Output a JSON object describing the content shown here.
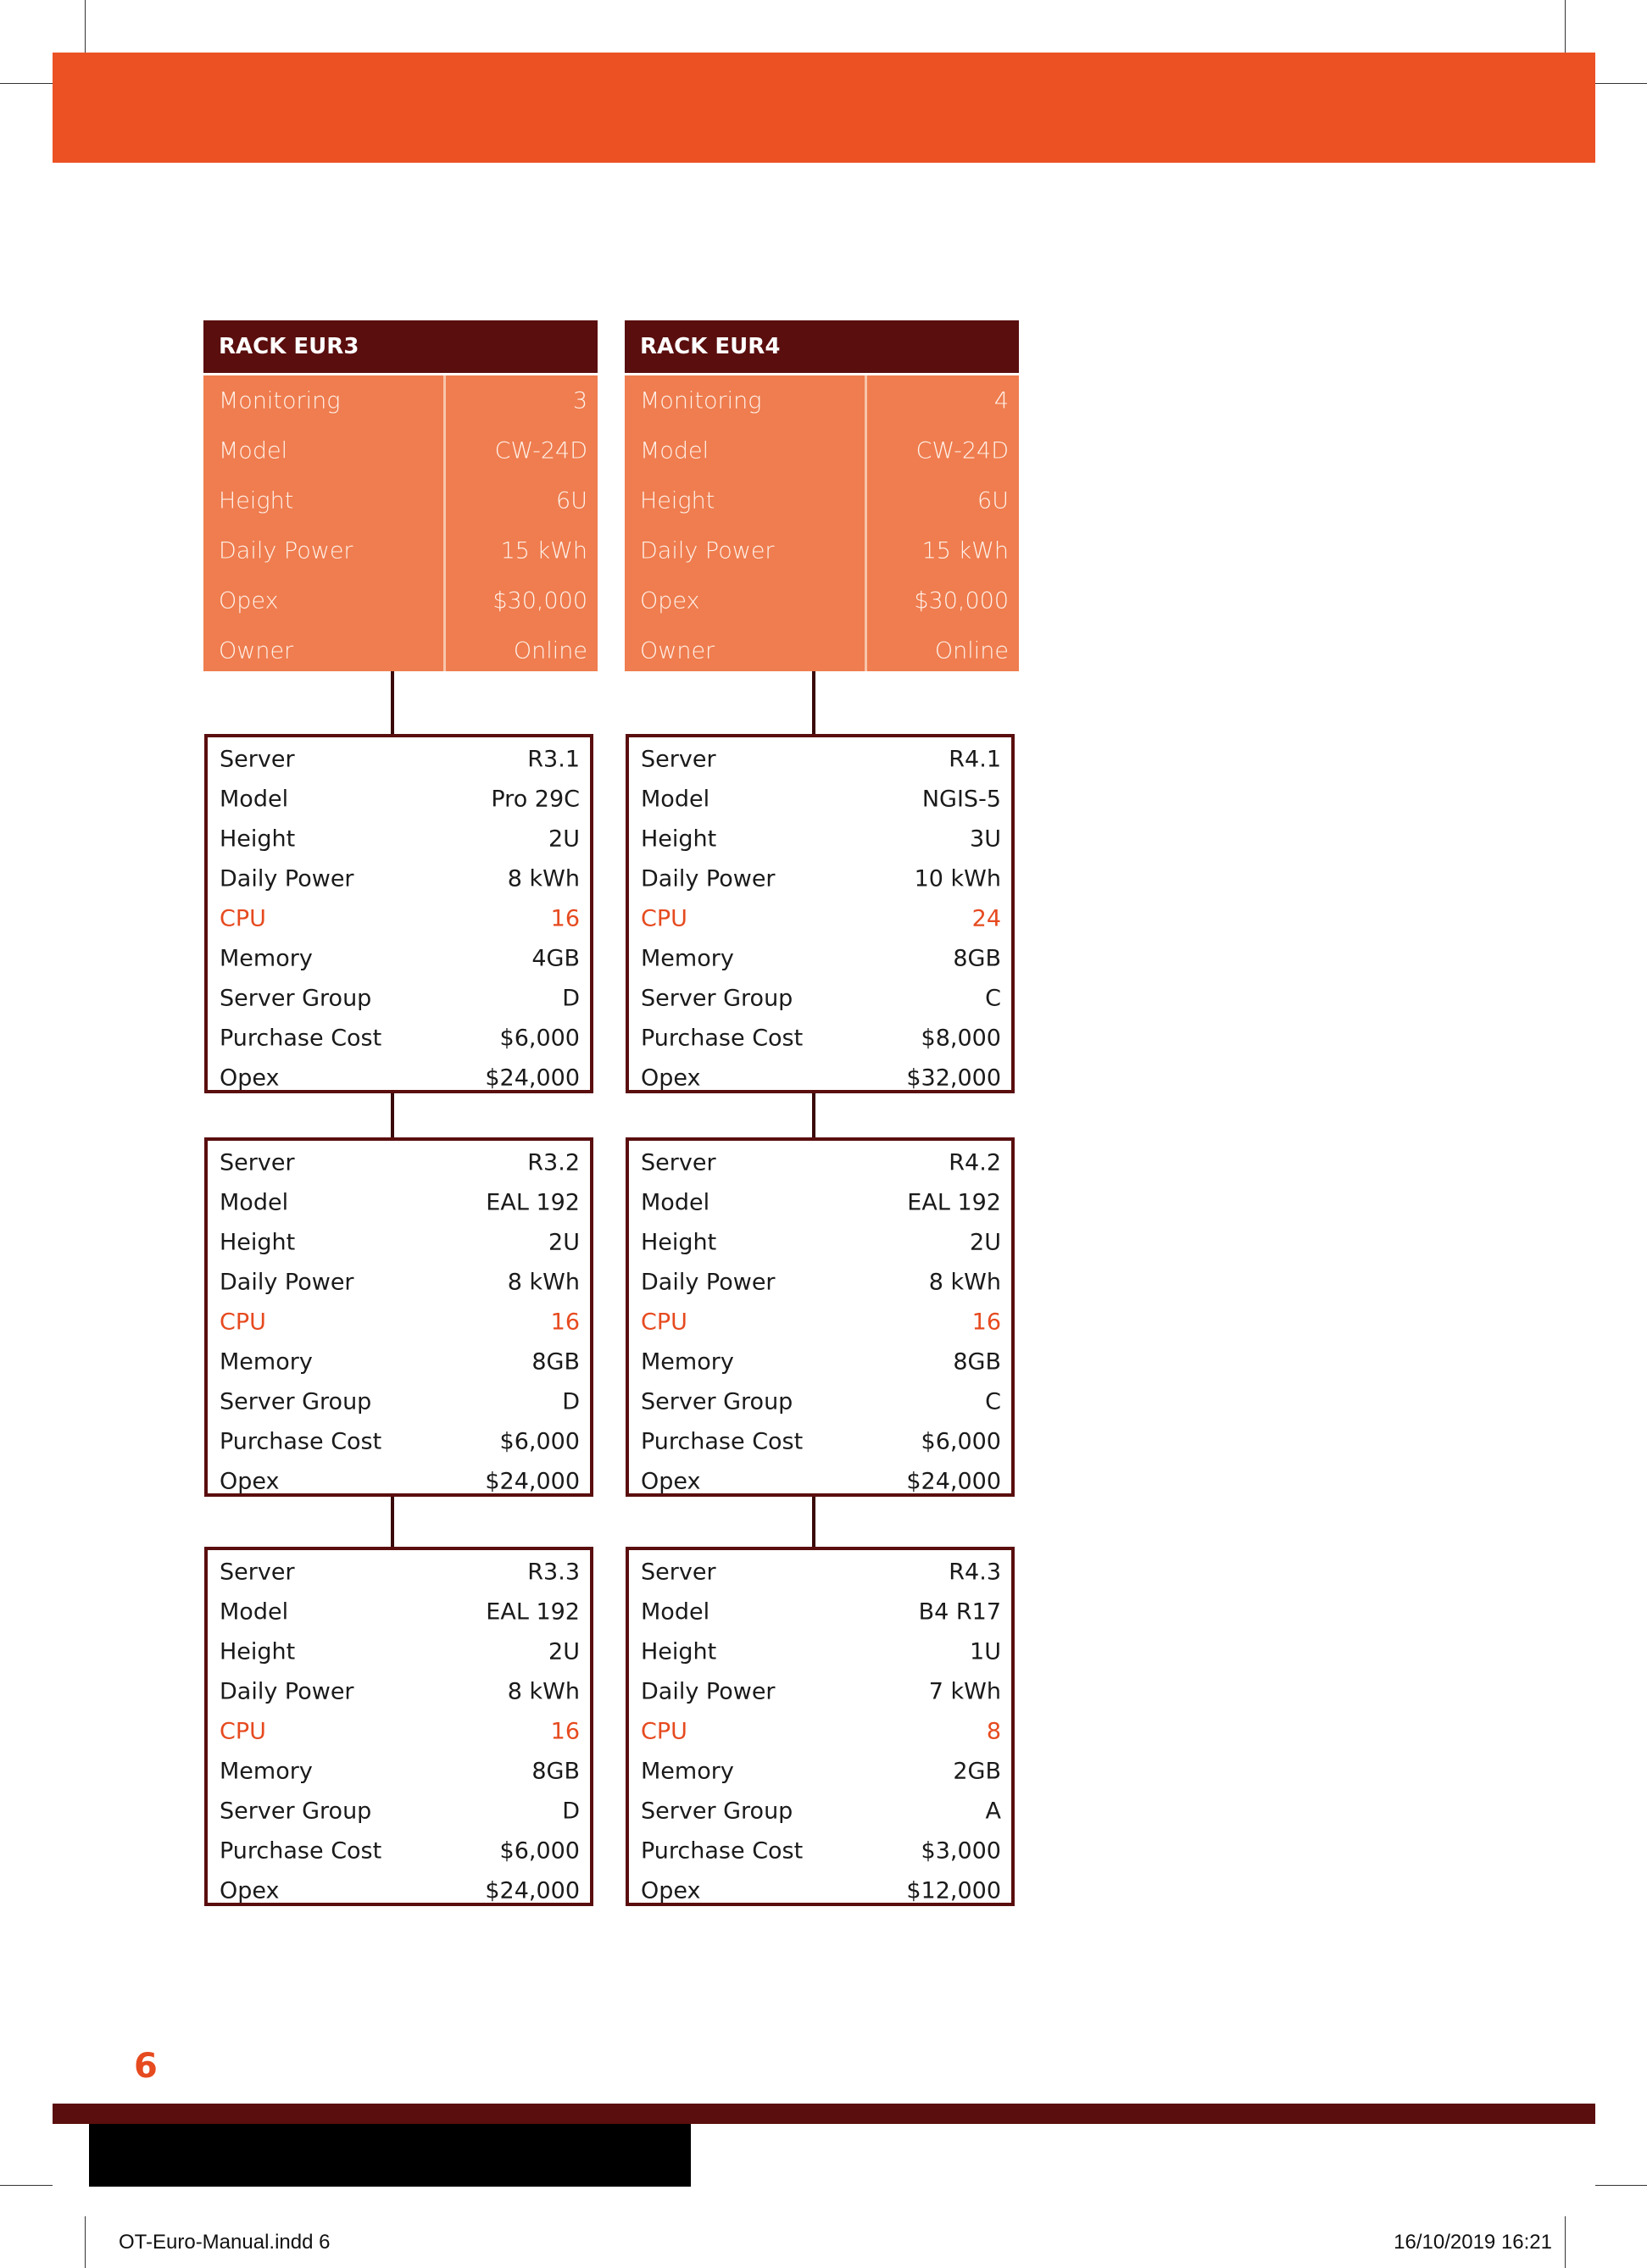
{
  "colors": {
    "orange": "#ec5124",
    "rack_body": "#ef7d4f",
    "dark": "#5a0e0e",
    "highlight": "#e64a1f"
  },
  "page_number": "6",
  "slug": {
    "file": "OT-Euro-Manual.indd   6",
    "datetime": "16/10/2019   16:21"
  },
  "racks": [
    {
      "title": "RACK EUR3",
      "rows": [
        {
          "label": "Monitoring",
          "value": "3"
        },
        {
          "label": "Model",
          "value": "CW-24D"
        },
        {
          "label": "Height",
          "value": "6U"
        },
        {
          "label": "Daily Power",
          "value": "15 kWh"
        },
        {
          "label": "Opex",
          "value": "$30,000"
        },
        {
          "label": "Owner",
          "value": "Online"
        }
      ],
      "servers": [
        {
          "rows": [
            {
              "label": "Server",
              "value": "R3.1"
            },
            {
              "label": "Model",
              "value": "Pro 29C"
            },
            {
              "label": "Height",
              "value": "2U"
            },
            {
              "label": "Daily Power",
              "value": "8 kWh"
            },
            {
              "label": "CPU",
              "value": "16"
            },
            {
              "label": "Memory",
              "value": "4GB"
            },
            {
              "label": "Server Group",
              "value": "D"
            },
            {
              "label": "Purchase Cost",
              "value": "$6,000"
            },
            {
              "label": "Opex",
              "value": "$24,000"
            }
          ]
        },
        {
          "rows": [
            {
              "label": "Server",
              "value": "R3.2"
            },
            {
              "label": "Model",
              "value": "EAL 192"
            },
            {
              "label": "Height",
              "value": "2U"
            },
            {
              "label": "Daily Power",
              "value": "8 kWh"
            },
            {
              "label": "CPU",
              "value": "16"
            },
            {
              "label": "Memory",
              "value": "8GB"
            },
            {
              "label": "Server Group",
              "value": "D"
            },
            {
              "label": "Purchase Cost",
              "value": "$6,000"
            },
            {
              "label": "Opex",
              "value": "$24,000"
            }
          ]
        },
        {
          "rows": [
            {
              "label": "Server",
              "value": "R3.3"
            },
            {
              "label": "Model",
              "value": "EAL 192"
            },
            {
              "label": "Height",
              "value": "2U"
            },
            {
              "label": "Daily Power",
              "value": "8 kWh"
            },
            {
              "label": "CPU",
              "value": "16"
            },
            {
              "label": "Memory",
              "value": "8GB"
            },
            {
              "label": "Server Group",
              "value": "D"
            },
            {
              "label": "Purchase Cost",
              "value": "$6,000"
            },
            {
              "label": "Opex",
              "value": "$24,000"
            }
          ]
        }
      ]
    },
    {
      "title": "RACK EUR4",
      "rows": [
        {
          "label": "Monitoring",
          "value": "4"
        },
        {
          "label": "Model",
          "value": "CW-24D"
        },
        {
          "label": "Height",
          "value": "6U"
        },
        {
          "label": "Daily Power",
          "value": "15 kWh"
        },
        {
          "label": "Opex",
          "value": "$30,000"
        },
        {
          "label": "Owner",
          "value": "Online"
        }
      ],
      "servers": [
        {
          "rows": [
            {
              "label": "Server",
              "value": "R4.1"
            },
            {
              "label": "Model",
              "value": "NGIS-5"
            },
            {
              "label": "Height",
              "value": "3U"
            },
            {
              "label": "Daily Power",
              "value": "10 kWh"
            },
            {
              "label": "CPU",
              "value": "24"
            },
            {
              "label": "Memory",
              "value": "8GB"
            },
            {
              "label": "Server Group",
              "value": "C"
            },
            {
              "label": "Purchase Cost",
              "value": "$8,000"
            },
            {
              "label": "Opex",
              "value": "$32,000"
            }
          ]
        },
        {
          "rows": [
            {
              "label": "Server",
              "value": "R4.2"
            },
            {
              "label": "Model",
              "value": "EAL 192"
            },
            {
              "label": "Height",
              "value": "2U"
            },
            {
              "label": "Daily Power",
              "value": "8 kWh"
            },
            {
              "label": "CPU",
              "value": "16"
            },
            {
              "label": "Memory",
              "value": "8GB"
            },
            {
              "label": "Server Group",
              "value": "C"
            },
            {
              "label": "Purchase Cost",
              "value": "$6,000"
            },
            {
              "label": "Opex",
              "value": "$24,000"
            }
          ]
        },
        {
          "rows": [
            {
              "label": "Server",
              "value": "R4.3"
            },
            {
              "label": "Model",
              "value": "B4 R17"
            },
            {
              "label": "Height",
              "value": "1U"
            },
            {
              "label": "Daily Power",
              "value": "7 kWh"
            },
            {
              "label": "CPU",
              "value": "8"
            },
            {
              "label": "Memory",
              "value": "2GB"
            },
            {
              "label": "Server Group",
              "value": "A"
            },
            {
              "label": "Purchase Cost",
              "value": "$3,000"
            },
            {
              "label": "Opex",
              "value": "$12,000"
            }
          ]
        }
      ]
    }
  ]
}
